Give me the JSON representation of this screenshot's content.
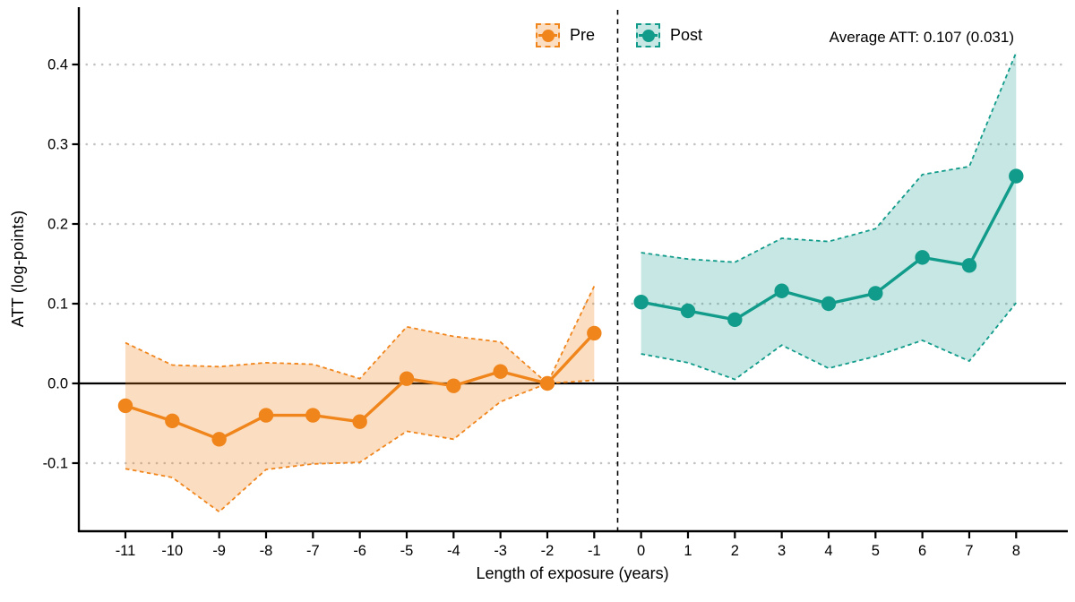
{
  "page": {
    "background": "#ffffff"
  },
  "chart_data": {
    "type": "line",
    "title": "",
    "xlabel": "Length of exposure (years)",
    "ylabel": "ATT (log-points)",
    "annotation": "Average ATT: 0.107 (0.031)",
    "legend_position": "top",
    "grid": "horizontal dotted gridlines at labeled y ticks; none at zero (solid black zero line)",
    "x_ticks": [
      -11,
      -10,
      -9,
      -8,
      -7,
      -6,
      -5,
      -4,
      -3,
      -2,
      -1,
      0,
      1,
      2,
      3,
      4,
      5,
      6,
      7,
      8
    ],
    "x_tick_labels": [
      "-11",
      "-10",
      "-9",
      "-8",
      "-7",
      "-6",
      "-5",
      "-4",
      "-3",
      "-2",
      "-1",
      "0",
      "1",
      "2",
      "3",
      "4",
      "5",
      "6",
      "7",
      "8"
    ],
    "y_ticks": [
      0.4,
      0.3,
      0.2,
      0.1,
      0.0,
      -0.1
    ],
    "y_tick_labels": [
      "0.4",
      "0.3",
      "0.2",
      "0.1",
      "0.0",
      "-0.1"
    ],
    "xlim": [
      -12,
      9
    ],
    "ylim": [
      -0.19,
      0.47
    ],
    "zero_line_y": 0.0,
    "reference_line_x": -0.5,
    "axis_color": "#000000",
    "gridline_color": "#c3c3c3",
    "series": [
      {
        "name": "Pre",
        "color": "#F0851C",
        "band_fill_rgba": "rgba(240,133,28,0.27)",
        "x": [
          -11,
          -10,
          -9,
          -8,
          -7,
          -6,
          -5,
          -4,
          -3,
          -2,
          -1
        ],
        "y": [
          -0.028,
          -0.047,
          -0.07,
          -0.04,
          -0.04,
          -0.048,
          0.006,
          -0.003,
          0.015,
          0.0,
          0.063
        ],
        "ci_upper": [
          0.051,
          0.023,
          0.021,
          0.026,
          0.024,
          0.006,
          0.071,
          0.059,
          0.052,
          0.0,
          0.122
        ],
        "ci_lower": [
          -0.107,
          -0.118,
          -0.161,
          -0.108,
          -0.101,
          -0.099,
          -0.06,
          -0.07,
          -0.023,
          0.0,
          0.004
        ]
      },
      {
        "name": "Post",
        "color": "#119B8A",
        "band_fill_rgba": "rgba(17,155,138,0.24)",
        "x": [
          0,
          1,
          2,
          3,
          4,
          5,
          6,
          7,
          8
        ],
        "y": [
          0.102,
          0.091,
          0.08,
          0.116,
          0.1,
          0.113,
          0.158,
          0.148,
          0.26
        ],
        "ci_upper": [
          0.164,
          0.156,
          0.152,
          0.182,
          0.178,
          0.194,
          0.262,
          0.272,
          0.415
        ],
        "ci_lower": [
          0.037,
          0.026,
          0.005,
          0.048,
          0.019,
          0.034,
          0.054,
          0.028,
          0.101
        ]
      }
    ]
  }
}
